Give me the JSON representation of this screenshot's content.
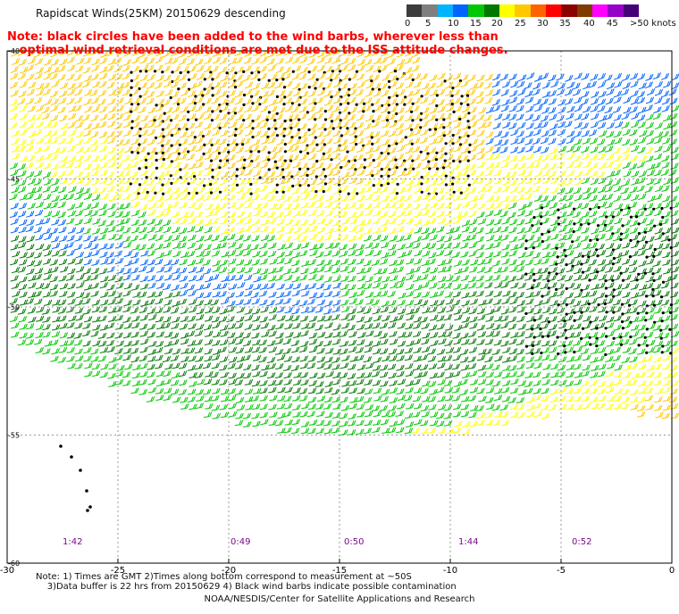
{
  "title": "Rapidscat Winds(25KM) 20150629 descending",
  "note_line1": "Note: black circles have been added to the wind barbs, wherever less than",
  "note_line2": "optimal wind retrieval conditions are met due to the ISS attitude changes.",
  "legend": {
    "colors": [
      "#3c3c3c",
      "#7f7f7f",
      "#00b4ff",
      "#0064ff",
      "#00c800",
      "#007800",
      "#ffff00",
      "#ffc800",
      "#ff6400",
      "#ff0000",
      "#8c0000",
      "#7f3c00",
      "#ff00ff",
      "#9600c8",
      "#460078"
    ],
    "labels": [
      "0",
      "5",
      "10",
      "15",
      "20",
      "25",
      "30",
      "35",
      "40",
      "45",
      ">50 knots"
    ]
  },
  "axes": {
    "x_ticks": [
      "-30",
      "-25",
      "-20",
      "-15",
      "-10",
      "-5",
      "0"
    ],
    "y_ticks": [
      "-40",
      "-45",
      "-50",
      "-55",
      "-60"
    ]
  },
  "pass_times": [
    "1:42",
    "0:49",
    "0:50",
    "1:44",
    "0:52"
  ],
  "footer_line1": "Note: 1) Times are GMT 2)Times along bottom correspond to measurement at ~50S",
  "footer_line2": "    3)Data buffer is 22 hrs from 20150629 4) Black wind barbs indicate possible contamination",
  "credit": "NOAA/NESDIS/Center for Satellite Applications and Research"
}
